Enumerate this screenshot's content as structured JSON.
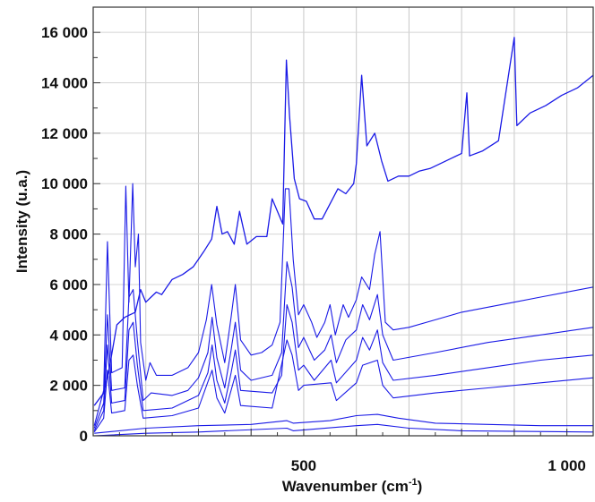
{
  "chart_data": {
    "type": "line",
    "title": "",
    "xlabel": "Wavenumber (cm",
    "xlabel_sup": "-1",
    "xlabel_suffix": ")",
    "ylabel": "Intensity (u.a.)",
    "xlim": [
      100,
      1050
    ],
    "ylim": [
      0,
      17000
    ],
    "x_tick_values": [
      500,
      1000
    ],
    "x_tick_labels": [
      "500",
      "1 000"
    ],
    "y_tick_values": [
      0,
      2000,
      4000,
      6000,
      8000,
      10000,
      12000,
      14000,
      16000
    ],
    "y_tick_labels": [
      "0",
      "2 000",
      "4 000",
      "6 000",
      "8 000",
      "10 000",
      "12 000",
      "14 000",
      "16 000"
    ],
    "grid": true,
    "legend": "none",
    "line_color": "#1a1ae6",
    "series": [
      {
        "values": [
          [
            102,
            1200
          ],
          [
            120,
            1700
          ],
          [
            130,
            2600
          ],
          [
            145,
            4400
          ],
          [
            160,
            4700
          ],
          [
            180,
            4900
          ],
          [
            190,
            5800
          ],
          [
            200,
            5300
          ],
          [
            210,
            5500
          ],
          [
            220,
            5700
          ],
          [
            230,
            5600
          ],
          [
            240,
            5900
          ],
          [
            250,
            6200
          ],
          [
            270,
            6400
          ],
          [
            290,
            6700
          ],
          [
            300,
            7000
          ],
          [
            310,
            7300
          ],
          [
            325,
            7800
          ],
          [
            335,
            9100
          ],
          [
            345,
            8000
          ],
          [
            355,
            8100
          ],
          [
            368,
            7600
          ],
          [
            378,
            8900
          ],
          [
            392,
            7600
          ],
          [
            410,
            7900
          ],
          [
            430,
            7900
          ],
          [
            440,
            9400
          ],
          [
            460,
            8400
          ],
          [
            467,
            14900
          ],
          [
            473,
            12700
          ],
          [
            482,
            10200
          ],
          [
            492,
            9400
          ],
          [
            505,
            9300
          ],
          [
            520,
            8600
          ],
          [
            535,
            8600
          ],
          [
            550,
            9200
          ],
          [
            565,
            9800
          ],
          [
            580,
            9600
          ],
          [
            595,
            10000
          ],
          [
            600,
            10800
          ],
          [
            610,
            14300
          ],
          [
            620,
            11500
          ],
          [
            635,
            12000
          ],
          [
            648,
            10900
          ],
          [
            660,
            10100
          ],
          [
            680,
            10300
          ],
          [
            700,
            10300
          ],
          [
            720,
            10500
          ],
          [
            740,
            10600
          ],
          [
            760,
            10800
          ],
          [
            780,
            11000
          ],
          [
            800,
            11200
          ],
          [
            810,
            13600
          ],
          [
            815,
            11100
          ],
          [
            840,
            11300
          ],
          [
            870,
            11700
          ],
          [
            900,
            15800
          ],
          [
            905,
            12300
          ],
          [
            930,
            12800
          ],
          [
            960,
            13100
          ],
          [
            990,
            13500
          ],
          [
            1020,
            13800
          ],
          [
            1050,
            14300
          ]
        ]
      },
      {
        "values": [
          [
            102,
            400
          ],
          [
            120,
            1800
          ],
          [
            127,
            7700
          ],
          [
            135,
            2500
          ],
          [
            155,
            2700
          ],
          [
            162,
            9900
          ],
          [
            168,
            5300
          ],
          [
            175,
            10000
          ],
          [
            180,
            6700
          ],
          [
            186,
            8000
          ],
          [
            190,
            3700
          ],
          [
            200,
            2200
          ],
          [
            208,
            2900
          ],
          [
            220,
            2400
          ],
          [
            250,
            2400
          ],
          [
            280,
            2700
          ],
          [
            300,
            3300
          ],
          [
            315,
            4600
          ],
          [
            325,
            6000
          ],
          [
            335,
            4400
          ],
          [
            350,
            2900
          ],
          [
            362,
            4700
          ],
          [
            370,
            6000
          ],
          [
            380,
            3800
          ],
          [
            400,
            3200
          ],
          [
            420,
            3300
          ],
          [
            440,
            3600
          ],
          [
            455,
            4500
          ],
          [
            465,
            9800
          ],
          [
            472,
            9800
          ],
          [
            480,
            7000
          ],
          [
            490,
            4800
          ],
          [
            500,
            5200
          ],
          [
            515,
            4500
          ],
          [
            525,
            3900
          ],
          [
            540,
            4500
          ],
          [
            550,
            5200
          ],
          [
            560,
            4000
          ],
          [
            575,
            5200
          ],
          [
            585,
            4700
          ],
          [
            600,
            5400
          ],
          [
            610,
            6300
          ],
          [
            625,
            5800
          ],
          [
            635,
            7200
          ],
          [
            645,
            8100
          ],
          [
            655,
            4500
          ],
          [
            670,
            4200
          ],
          [
            700,
            4300
          ],
          [
            750,
            4600
          ],
          [
            800,
            4900
          ],
          [
            850,
            5100
          ],
          [
            900,
            5300
          ],
          [
            950,
            5500
          ],
          [
            1000,
            5700
          ],
          [
            1050,
            5900
          ]
        ]
      },
      {
        "values": [
          [
            102,
            300
          ],
          [
            120,
            1300
          ],
          [
            127,
            4800
          ],
          [
            135,
            1800
          ],
          [
            160,
            1900
          ],
          [
            168,
            5500
          ],
          [
            176,
            5800
          ],
          [
            184,
            3800
          ],
          [
            195,
            1400
          ],
          [
            210,
            1700
          ],
          [
            250,
            1600
          ],
          [
            280,
            1800
          ],
          [
            300,
            2300
          ],
          [
            318,
            3300
          ],
          [
            326,
            4700
          ],
          [
            335,
            3100
          ],
          [
            350,
            1900
          ],
          [
            362,
            3400
          ],
          [
            370,
            4500
          ],
          [
            380,
            2600
          ],
          [
            400,
            2200
          ],
          [
            440,
            2400
          ],
          [
            458,
            3300
          ],
          [
            468,
            6900
          ],
          [
            478,
            5900
          ],
          [
            490,
            3500
          ],
          [
            500,
            3900
          ],
          [
            520,
            3000
          ],
          [
            540,
            3400
          ],
          [
            552,
            4000
          ],
          [
            562,
            2900
          ],
          [
            580,
            3800
          ],
          [
            600,
            4200
          ],
          [
            612,
            5200
          ],
          [
            625,
            4600
          ],
          [
            640,
            5600
          ],
          [
            650,
            4000
          ],
          [
            670,
            3000
          ],
          [
            750,
            3300
          ],
          [
            850,
            3700
          ],
          [
            950,
            4000
          ],
          [
            1050,
            4300
          ]
        ]
      },
      {
        "values": [
          [
            102,
            200
          ],
          [
            120,
            1000
          ],
          [
            127,
            3600
          ],
          [
            135,
            1300
          ],
          [
            160,
            1400
          ],
          [
            168,
            4200
          ],
          [
            176,
            4500
          ],
          [
            184,
            2800
          ],
          [
            195,
            1000
          ],
          [
            250,
            1100
          ],
          [
            300,
            1600
          ],
          [
            318,
            2500
          ],
          [
            326,
            3600
          ],
          [
            335,
            2200
          ],
          [
            350,
            1300
          ],
          [
            362,
            2500
          ],
          [
            370,
            3400
          ],
          [
            380,
            1800
          ],
          [
            440,
            1700
          ],
          [
            458,
            2400
          ],
          [
            468,
            5200
          ],
          [
            478,
            4500
          ],
          [
            490,
            2600
          ],
          [
            500,
            2800
          ],
          [
            520,
            2200
          ],
          [
            552,
            3000
          ],
          [
            562,
            2100
          ],
          [
            600,
            3000
          ],
          [
            612,
            3900
          ],
          [
            625,
            3400
          ],
          [
            640,
            4200
          ],
          [
            650,
            2900
          ],
          [
            670,
            2200
          ],
          [
            750,
            2400
          ],
          [
            850,
            2700
          ],
          [
            950,
            3000
          ],
          [
            1050,
            3200
          ]
        ]
      },
      {
        "values": [
          [
            102,
            150
          ],
          [
            120,
            700
          ],
          [
            127,
            2600
          ],
          [
            135,
            900
          ],
          [
            160,
            1000
          ],
          [
            168,
            3000
          ],
          [
            176,
            3200
          ],
          [
            184,
            2000
          ],
          [
            195,
            700
          ],
          [
            250,
            800
          ],
          [
            300,
            1100
          ],
          [
            326,
            2600
          ],
          [
            335,
            1500
          ],
          [
            350,
            900
          ],
          [
            370,
            2400
          ],
          [
            380,
            1200
          ],
          [
            440,
            1100
          ],
          [
            468,
            3800
          ],
          [
            478,
            3200
          ],
          [
            490,
            1800
          ],
          [
            500,
            2000
          ],
          [
            552,
            2100
          ],
          [
            562,
            1400
          ],
          [
            600,
            2100
          ],
          [
            612,
            2800
          ],
          [
            640,
            3000
          ],
          [
            650,
            2000
          ],
          [
            670,
            1500
          ],
          [
            750,
            1700
          ],
          [
            850,
            1900
          ],
          [
            950,
            2100
          ],
          [
            1050,
            2300
          ]
        ]
      },
      {
        "values": [
          [
            102,
            100
          ],
          [
            200,
            300
          ],
          [
            300,
            400
          ],
          [
            400,
            450
          ],
          [
            468,
            600
          ],
          [
            480,
            500
          ],
          [
            550,
            600
          ],
          [
            600,
            800
          ],
          [
            640,
            850
          ],
          [
            680,
            700
          ],
          [
            750,
            500
          ],
          [
            850,
            450
          ],
          [
            950,
            400
          ],
          [
            1050,
            400
          ]
        ]
      },
      {
        "values": [
          [
            102,
            0
          ],
          [
            200,
            100
          ],
          [
            300,
            150
          ],
          [
            468,
            300
          ],
          [
            480,
            200
          ],
          [
            600,
            400
          ],
          [
            640,
            450
          ],
          [
            700,
            300
          ],
          [
            800,
            200
          ],
          [
            1050,
            150
          ]
        ]
      }
    ]
  }
}
